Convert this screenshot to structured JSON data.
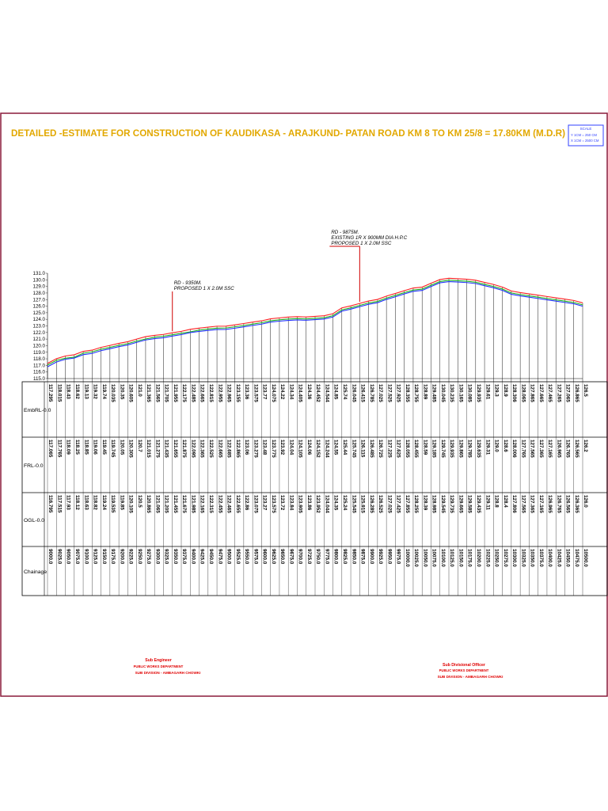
{
  "title": "DETAILED -ESTIMATE FOR CONSTRUCTION OF KAUDIKASA - ARAJKUND- PATAN ROAD KM 8 TO KM 25/8 = 17.80KM (M.D.R)",
  "scale": {
    "label": "SCALE",
    "y_line": "Y  1CM = 250 CM",
    "x_line": "X  1CM = 2500 CM"
  },
  "annotations": [
    {
      "lines": [
        "RD - 9350M.",
        "PROPOSED 1 X 2.0M SSC"
      ],
      "chainage": 9350
    },
    {
      "lines": [
        "RD - 9875M.",
        "EXISTING 1R X 900MM DIA H.P.C",
        "PROPOSED 1 X 2.0M SSC"
      ],
      "chainage": 9875
    }
  ],
  "row_labels": [
    "EmbRL-0.0",
    "FRL-0.0",
    "OGL-0.0",
    "Chainage"
  ],
  "signatures": {
    "left": [
      "Sub Engineer",
      "PUBLIC WORKS DEPARTMENT",
      "SUB DIVISION - AMBAGARH CHOWKI"
    ],
    "right": [
      "Sub Divisional Officer",
      "PUBLIC WORKS DEPARTMENT",
      "SUB DIVISION - AMBAGARH CHOWKI"
    ]
  },
  "colors": {
    "title": "#e2a800",
    "frame": "#8a1a3a",
    "emb": "#ff2020",
    "frl": "#20b020",
    "ogl": "#2030ff",
    "annotation_line": "#d00000",
    "scale_box": "#3040ff",
    "signature": "#e00000"
  },
  "chart_data": {
    "type": "line",
    "title": "",
    "xlabel": "Chainage",
    "ylabel": "",
    "ylim": [
      115.0,
      131.0
    ],
    "y_ticks": [
      "131.0",
      "130.0",
      "129.0",
      "128.0",
      "127.0",
      "126.0",
      "125.0",
      "124.0",
      "123.0",
      "122.0",
      "121.0",
      "120.0",
      "119.0",
      "118.0",
      "117.0",
      "116.0",
      "115.0"
    ],
    "x": [
      "9000.0",
      "9025.0",
      "9050.0",
      "9075.0",
      "9100.0",
      "9125.0",
      "9150.0",
      "9175.0",
      "9200.0",
      "9225.0",
      "9250.0",
      "9275.0",
      "9300.0",
      "9325.0",
      "9350.0",
      "9375.0",
      "9400.0",
      "9425.0",
      "9450.0",
      "9475.0",
      "9500.0",
      "9525.0",
      "9550.0",
      "9575.0",
      "9600.0",
      "9625.0",
      "9650.0",
      "9675.0",
      "9700.0",
      "9725.0",
      "9750.0",
      "9775.0",
      "9800.0",
      "9825.0",
      "9850.0",
      "9875.0",
      "9900.0",
      "9925.0",
      "9950.0",
      "9975.0",
      "10000.0",
      "10025.0",
      "10050.0",
      "10075.0",
      "10100.0",
      "10125.0",
      "10150.0",
      "10175.0",
      "10200.0",
      "10225.0",
      "10250.0",
      "10275.0",
      "10300.0",
      "10325.0",
      "10350.0",
      "10375.0",
      "10400.0",
      "10425.0",
      "10450.0",
      "10475.0",
      "10500.0"
    ],
    "series": [
      {
        "name": "EmbRL-0.0",
        "values": [
          "117.295",
          "118.015",
          "118.43",
          "118.62",
          "119.13",
          "119.32",
          "119.74",
          "120.035",
          "120.35",
          "120.605",
          "121.0",
          "121.365",
          "121.565",
          "121.705",
          "121.955",
          "122.175",
          "122.485",
          "122.665",
          "122.815",
          "122.955",
          "122.965",
          "123.155",
          "123.36",
          "123.575",
          "123.77",
          "124.075",
          "124.22",
          "124.34",
          "124.405",
          "124.36",
          "124.452",
          "124.544",
          "124.85",
          "125.74",
          "126.045",
          "126.415",
          "126.785",
          "127.025",
          "127.525",
          "127.925",
          "128.355",
          "128.755",
          "128.89",
          "129.485",
          "130.045",
          "130.235",
          "130.165",
          "130.085",
          "129.935",
          "129.61",
          "129.3",
          "128.9",
          "128.306",
          "128.065",
          "127.865",
          "127.665",
          "127.465",
          "127.265",
          "127.065",
          "126.865",
          "126.5"
        ]
      },
      {
        "name": "FRL-0.0",
        "values": [
          "117.065",
          "117.765",
          "118.09",
          "118.25",
          "118.85",
          "119.06",
          "119.45",
          "119.745",
          "120.05",
          "120.305",
          "120.7",
          "121.015",
          "121.275",
          "121.435",
          "121.655",
          "121.875",
          "122.095",
          "122.365",
          "122.525",
          "122.665",
          "122.685",
          "122.865",
          "123.06",
          "123.275",
          "123.48",
          "123.775",
          "123.92",
          "124.04",
          "124.105",
          "124.06",
          "124.152",
          "124.244",
          "124.55",
          "125.44",
          "125.745",
          "126.115",
          "126.485",
          "126.725",
          "127.225",
          "127.625",
          "128.055",
          "128.455",
          "128.59",
          "129.185",
          "129.745",
          "129.935",
          "129.865",
          "129.785",
          "129.635",
          "129.31",
          "129.0",
          "128.6",
          "128.006",
          "127.765",
          "127.565",
          "127.365",
          "127.165",
          "126.965",
          "126.765",
          "126.565",
          "126.2"
        ]
      },
      {
        "name": "OGL-0.0",
        "values": [
          "116.795",
          "117.515",
          "117.93",
          "118.12",
          "118.63",
          "118.82",
          "119.24",
          "119.535",
          "119.85",
          "120.105",
          "120.5",
          "120.865",
          "121.065",
          "121.205",
          "121.455",
          "121.675",
          "121.985",
          "122.165",
          "122.315",
          "122.455",
          "122.465",
          "122.655",
          "122.86",
          "123.075",
          "123.27",
          "123.575",
          "123.72",
          "123.84",
          "123.905",
          "123.86",
          "123.952",
          "124.044",
          "124.35",
          "125.24",
          "125.545",
          "125.915",
          "126.285",
          "126.525",
          "127.025",
          "127.425",
          "127.855",
          "128.255",
          "128.39",
          "128.985",
          "129.545",
          "129.735",
          "129.665",
          "129.585",
          "129.435",
          "129.11",
          "128.8",
          "128.4",
          "127.806",
          "127.565",
          "127.365",
          "127.165",
          "126.965",
          "126.765",
          "126.565",
          "126.365",
          "126.0"
        ]
      }
    ]
  }
}
